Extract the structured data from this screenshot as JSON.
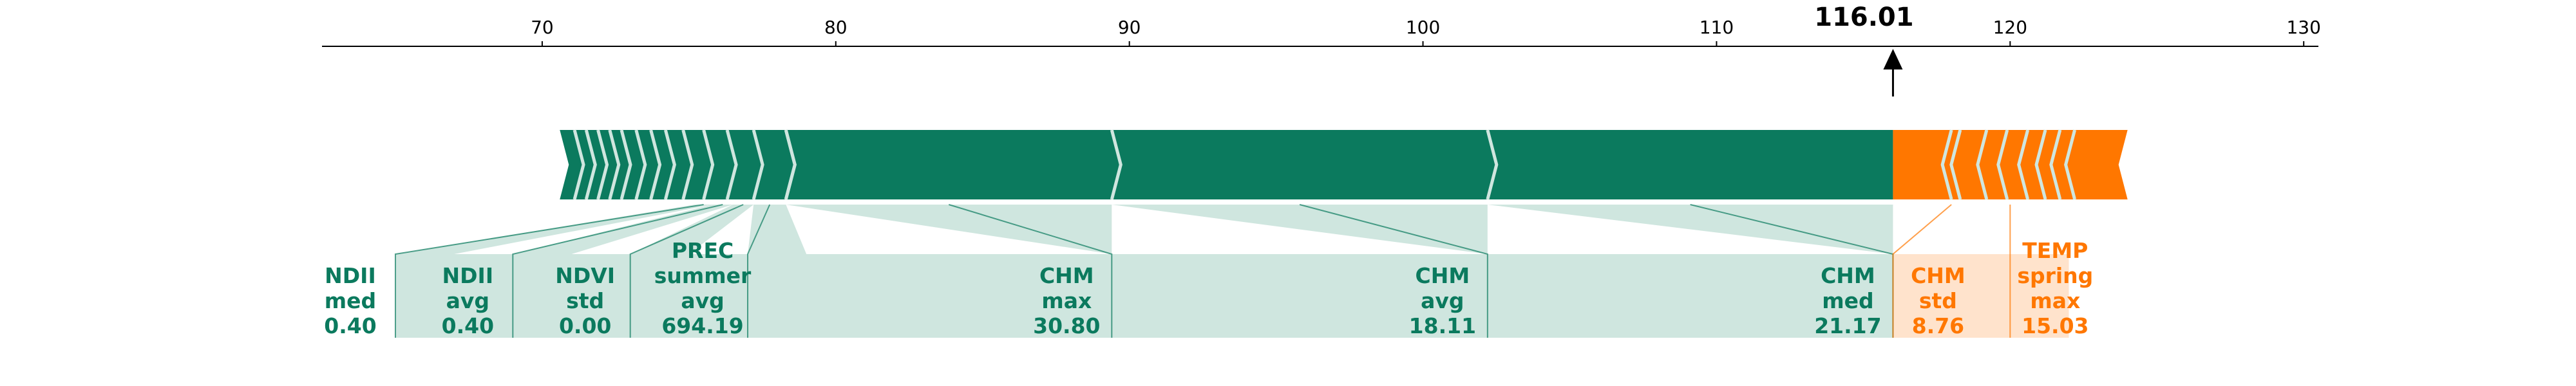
{
  "chart_data": {
    "type": "force",
    "xlim": [
      62.5,
      130.5
    ],
    "xticks": [
      70,
      80,
      90,
      100,
      110,
      120,
      130
    ],
    "prediction": {
      "value": 116.01,
      "label": "116.01"
    },
    "bar_range": [
      70.6,
      124.0
    ],
    "colors": {
      "positive": "#0B7A5E",
      "positive_fill": "#CFE6DF",
      "negative": "#FF7700",
      "negative_fill": "#FFE3CC",
      "separator": "#CFE6DF"
    },
    "positive_chevrons": [
      71.1,
      71.5,
      71.9,
      72.3,
      72.7,
      73.2,
      73.7,
      74.2,
      74.8,
      75.5,
      76.3,
      77.2,
      78.3
    ],
    "negative_chevrons": [
      122.2,
      121.7,
      121.2,
      120.6,
      119.9,
      119.2,
      118.3
    ],
    "positive_features": [
      {
        "lines": [
          "NDII",
          "med",
          "0.40"
        ],
        "segment": [
          75.2,
          75.8
        ],
        "label_x": 65.0
      },
      {
        "lines": [
          "NDII",
          "avg",
          "0.40"
        ],
        "segment": [
          75.8,
          76.5
        ],
        "label_x": 69.0
      },
      {
        "lines": [
          "NDVI",
          "std",
          "0.00"
        ],
        "segment": [
          76.5,
          77.2
        ],
        "label_x": 73.0
      },
      {
        "lines": [
          "PREC",
          "summer",
          "avg",
          "694.19"
        ],
        "segment": [
          77.2,
          78.3
        ],
        "label_x": 77.0
      },
      {
        "lines": [
          "CHM",
          "max",
          "30.80"
        ],
        "segment": [
          78.3,
          89.4
        ],
        "label_x": 89.4
      },
      {
        "lines": [
          "CHM",
          "avg",
          "18.11"
        ],
        "segment": [
          89.4,
          102.2
        ],
        "label_x": 102.2
      },
      {
        "lines": [
          "CHM",
          "med",
          "21.17"
        ],
        "segment": [
          102.2,
          116.01
        ],
        "label_x": 116.01
      }
    ],
    "negative_features": [
      {
        "lines": [
          "CHM",
          "std",
          "8.76"
        ],
        "segment": [
          116.01,
          118.0
        ],
        "label_x": 116.01
      },
      {
        "lines": [
          "TEMP",
          "spring",
          "max",
          "15.03"
        ],
        "segment": [
          118.0,
          120.0
        ],
        "label_x": 120.0
      }
    ]
  }
}
